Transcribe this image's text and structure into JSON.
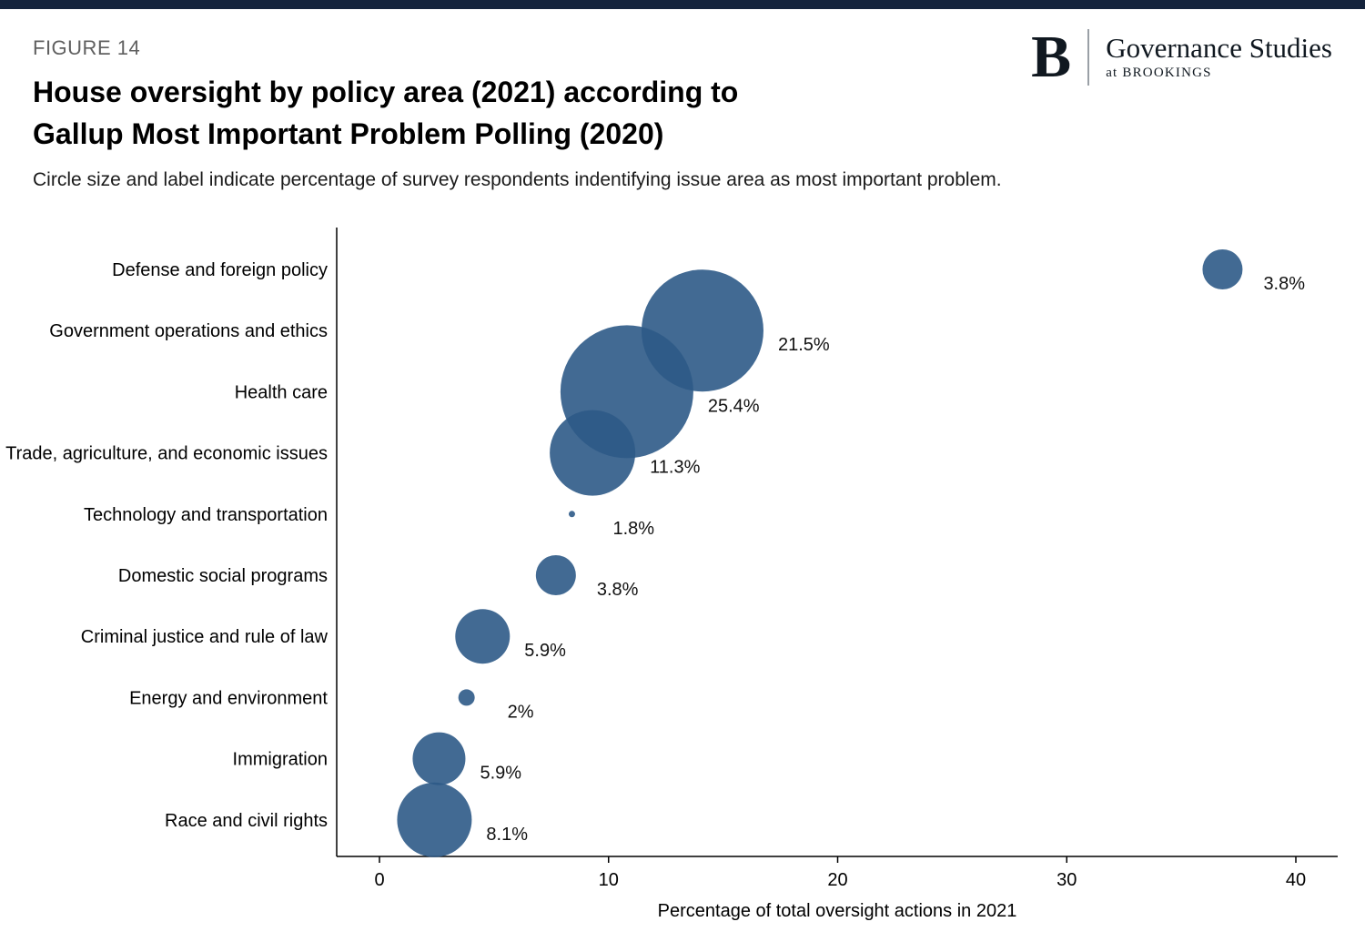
{
  "page": {
    "figure_label": "FIGURE 14",
    "title_line1": "House oversight by policy area (2021) according to",
    "title_line2": "Gallup Most Important Problem Polling (2020)",
    "subtitle": "Circle size and label indicate percentage of survey respondents indentifying issue area as most important problem."
  },
  "logo": {
    "initial": "B",
    "name": "Governance Studies",
    "sub": "at BROOKINGS"
  },
  "colors": {
    "top_bar": "#14233c",
    "bubble": "#2e5a87",
    "bubble_opacity": 0.9,
    "axis": "#000000"
  },
  "chart_data": {
    "type": "scatter",
    "subtype": "bubble",
    "title": "House oversight by policy area (2021) according to Gallup Most Important Problem Polling (2020)",
    "xlabel": "Percentage of total oversight actions in 2021",
    "ylabel": "",
    "xlim": [
      -2,
      42
    ],
    "x_ticks": [
      0,
      10,
      20,
      30,
      40
    ],
    "grid": false,
    "legend": false,
    "size_meaning": "Percentage of survey respondents identifying issue area as most important problem",
    "rows": [
      {
        "category": "Defense and foreign policy",
        "x": 36.8,
        "mip_value": 3.8,
        "mip_label": "3.8%",
        "radius_px": 22
      },
      {
        "category": "Government operations and ethics",
        "x": 14.1,
        "mip_value": 21.5,
        "mip_label": "21.5%",
        "radius_px": 67
      },
      {
        "category": "Health care",
        "x": 10.8,
        "mip_value": 25.4,
        "mip_label": "25.4%",
        "radius_px": 73
      },
      {
        "category": "Trade, agriculture, and economic issues",
        "x": 9.3,
        "mip_value": 11.3,
        "mip_label": "11.3%",
        "radius_px": 47
      },
      {
        "category": "Technology and transportation",
        "x": 8.4,
        "mip_value": 1.8,
        "mip_label": "1.8%",
        "radius_px": 3.5
      },
      {
        "category": "Domestic social programs",
        "x": 7.7,
        "mip_value": 3.8,
        "mip_label": "3.8%",
        "radius_px": 22
      },
      {
        "category": "Criminal justice and rule of law",
        "x": 4.5,
        "mip_value": 5.9,
        "mip_label": "5.9%",
        "radius_px": 30
      },
      {
        "category": "Energy and environment",
        "x": 3.8,
        "mip_value": 2,
        "mip_label": "2%",
        "radius_px": 9
      },
      {
        "category": "Immigration",
        "x": 2.6,
        "mip_value": 5.9,
        "mip_label": "5.9%",
        "radius_px": 29
      },
      {
        "category": "Race and civil rights",
        "x": 2.4,
        "mip_value": 8.1,
        "mip_label": "8.1%",
        "radius_px": 41
      }
    ]
  }
}
